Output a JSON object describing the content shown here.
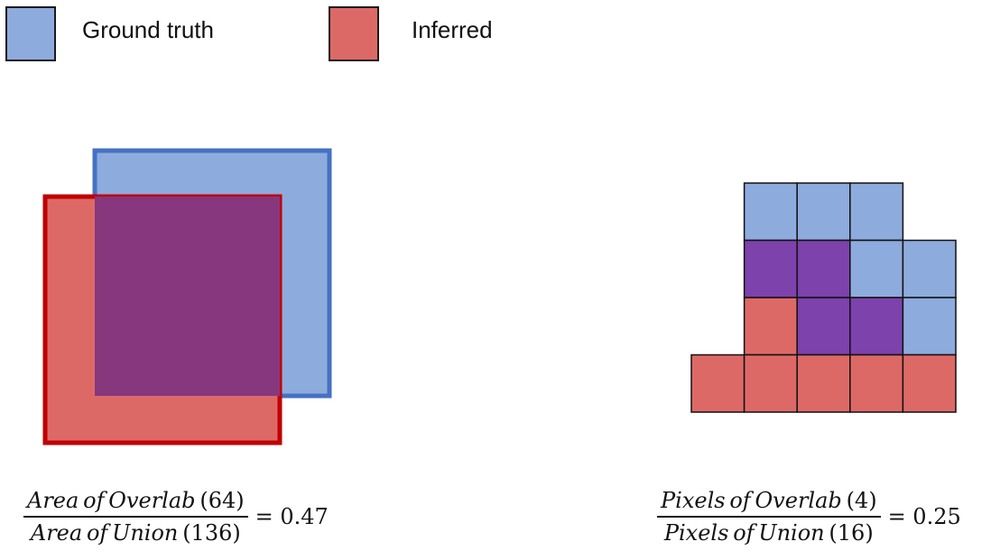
{
  "legend": {
    "ground_truth": {
      "label": "Ground truth",
      "color": "#8EABDD"
    },
    "inferred": {
      "label": "Inferred",
      "color": "#DD6967"
    }
  },
  "colors": {
    "ground_truth_fill": "#8EABDD",
    "ground_truth_stroke": "#4472C4",
    "inferred_fill": "#DD6967",
    "inferred_stroke": "#C00000",
    "overlap_fill": "#87377E",
    "pixel_overlap_fill": "#7D42AC"
  },
  "grid": {
    "legend_rows": "ground truth = g, inferred = r, overlap = o, empty = .",
    "rows": [
      [
        ".",
        "g",
        "g",
        "g",
        "."
      ],
      [
        ".",
        "o",
        "o",
        "g",
        "g"
      ],
      [
        ".",
        "r",
        "o",
        "o",
        "g"
      ],
      [
        "r",
        "r",
        "r",
        "r",
        "r"
      ]
    ]
  },
  "formulas": {
    "area": {
      "num_words": [
        "Area",
        "of",
        "Overlab"
      ],
      "num_value": "(64)",
      "den_words": [
        "Area",
        "of",
        "Union"
      ],
      "den_value": "(136)",
      "result": "= 0.47"
    },
    "pixels": {
      "num_words": [
        "Pixels",
        "of",
        "Overlab"
      ],
      "num_value": "(4)",
      "den_words": [
        "Pixels",
        "of",
        "Union"
      ],
      "den_value": "(16)",
      "result": "= 0.25"
    }
  }
}
